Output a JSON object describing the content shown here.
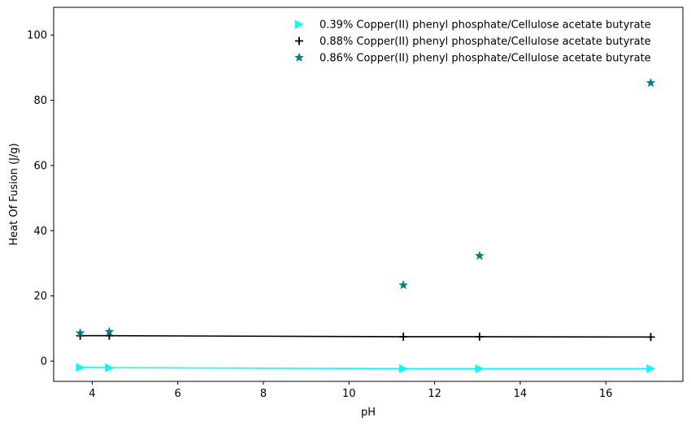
{
  "chart_data": {
    "type": "scatter",
    "title": "",
    "xlabel": "pH",
    "ylabel": "Heat Of Fusion (J/g)",
    "xlim": [
      3.1,
      17.8
    ],
    "ylim": [
      -6.2,
      108.5
    ],
    "xticks": [
      4,
      6,
      8,
      10,
      12,
      14,
      16
    ],
    "yticks": [
      0,
      20,
      40,
      60,
      80,
      100
    ],
    "grid": false,
    "legend_position": "top-right",
    "series": [
      {
        "name": "0.39% Copper(II) phenyl phosphate/Cellulose acetate butyrate",
        "color": "#00ffff",
        "marker": "triangle-right",
        "line": true,
        "x": [
          3.72,
          4.4,
          11.27,
          13.05,
          17.05
        ],
        "y": [
          -1.9,
          -2.0,
          -2.3,
          -2.3,
          -2.3
        ]
      },
      {
        "name": "0.88% Copper(II) phenyl phosphate/Cellulose acetate butyrate",
        "color": "#000000",
        "marker": "plus",
        "line": true,
        "x": [
          3.72,
          4.4,
          11.27,
          13.05,
          17.05
        ],
        "y": [
          7.8,
          7.8,
          7.5,
          7.5,
          7.4
        ]
      },
      {
        "name": "0.86% Copper(II) phenyl phosphate/Cellulose acetate butyrate",
        "color": "#008080",
        "marker": "star",
        "line": false,
        "x": [
          3.72,
          4.4,
          11.27,
          13.05,
          17.05
        ],
        "y": [
          8.6,
          9.0,
          23.3,
          32.3,
          85.3
        ]
      }
    ]
  }
}
